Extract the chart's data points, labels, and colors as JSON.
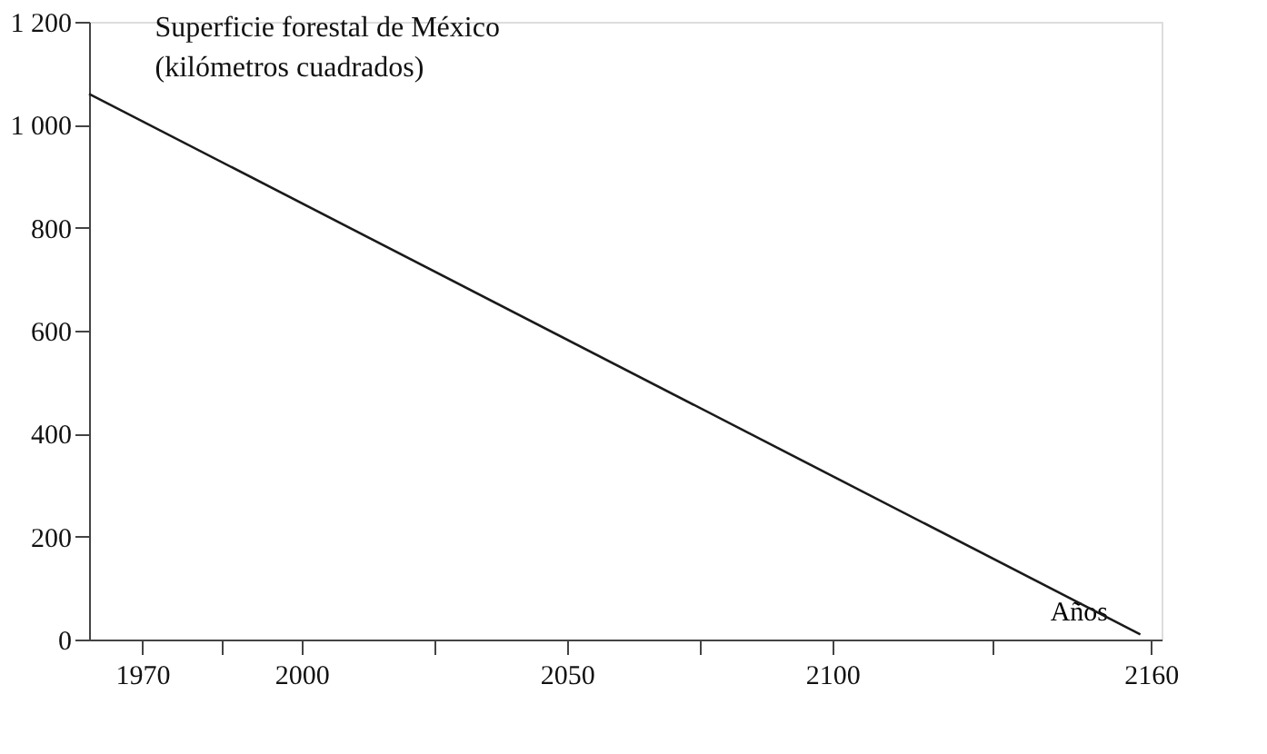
{
  "chart_data": {
    "type": "line",
    "title": "Superficie forestal de México",
    "subtitle": "(kilómetros cuadrados)",
    "xlabel": "Años",
    "x": [
      1960,
      2158
    ],
    "series": [
      {
        "color": "#1a1a1a",
        "values": [
          1060,
          10
        ]
      }
    ],
    "xlim": [
      1960,
      2162
    ],
    "xticks": [
      1970,
      {
        "value": 1985,
        "label": null
      },
      2000,
      {
        "value": 2025,
        "label": null
      },
      2050,
      {
        "value": 2075,
        "label": null
      },
      2100,
      {
        "value": 2130,
        "label": null
      },
      2160
    ],
    "ylim": [
      0,
      1200
    ],
    "yticks": [
      0,
      200,
      400,
      600,
      800,
      {
        "value": 1000,
        "label": "1 000"
      },
      {
        "value": 1200,
        "label": "1 200"
      }
    ],
    "grid": false,
    "legend": false,
    "marker": "none",
    "line_style": "solid"
  }
}
